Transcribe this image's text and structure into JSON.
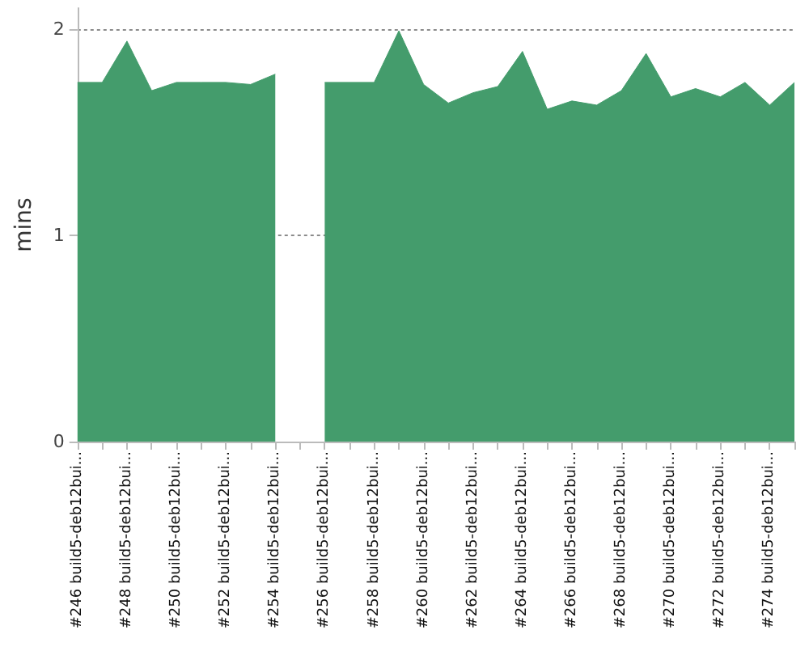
{
  "chart_data": {
    "type": "area",
    "ylabel": "mins",
    "categories": [
      "#246 build5-deb12bui...",
      null,
      "#248 build5-deb12bui...",
      null,
      "#250 build5-deb12bui...",
      null,
      "#252 build5-deb12bui...",
      null,
      "#254 build5-deb12bui...",
      null,
      "#256 build5-deb12bui...",
      null,
      "#258 build5-deb12bui...",
      null,
      "#260 build5-deb12bui...",
      null,
      "#262 build5-deb12bui...",
      null,
      "#264 build5-deb12bui...",
      null,
      "#266 build5-deb12bui...",
      null,
      "#268 build5-deb12bui...",
      null,
      "#270 build5-deb12bui...",
      null,
      "#272 build5-deb12bui...",
      null,
      "#274 build5-deb12bui...",
      null
    ],
    "series": [
      {
        "color": "#449c6c",
        "values": [
          1.74,
          1.74,
          1.94,
          1.7,
          1.74,
          1.74,
          1.74,
          1.73,
          1.78,
          null,
          1.74,
          1.74,
          1.74,
          1.99,
          1.73,
          1.64,
          1.69,
          1.72,
          1.89,
          1.61,
          1.65,
          1.63,
          1.7,
          1.88,
          1.67,
          1.71,
          1.67,
          1.74,
          1.63,
          1.74
        ]
      }
    ],
    "ylim": [
      0,
      2.1
    ],
    "yticks": [
      0,
      1,
      2
    ],
    "grid": "y"
  }
}
